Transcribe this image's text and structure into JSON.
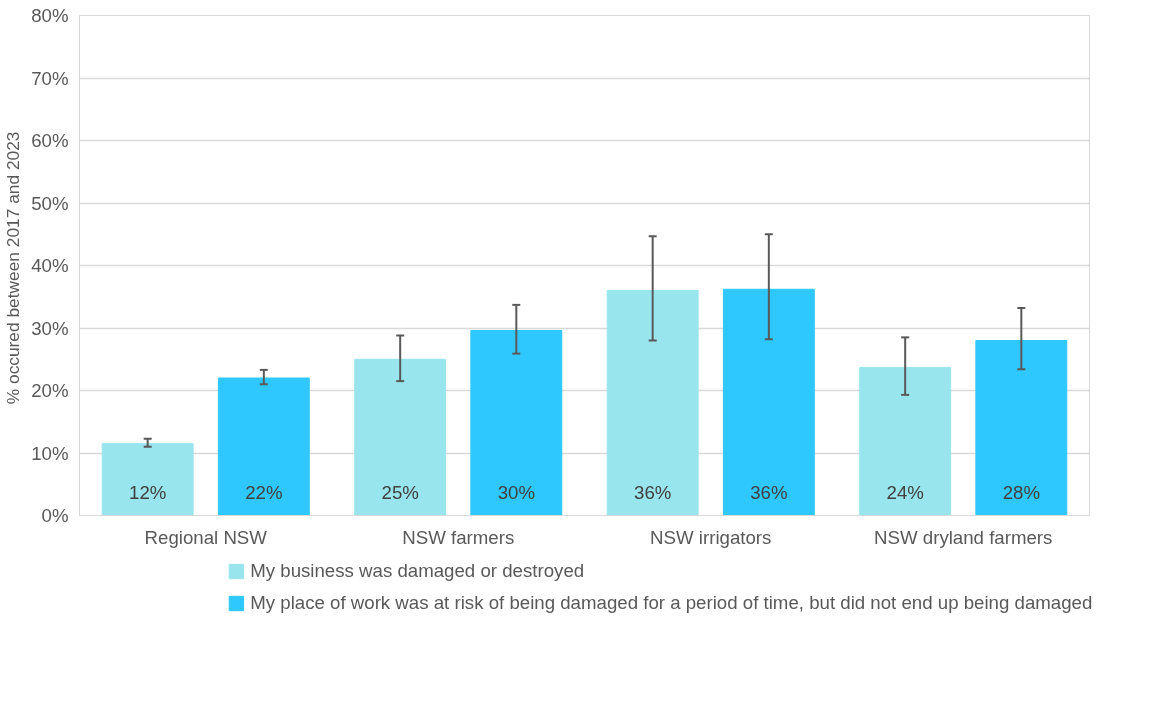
{
  "chart_data": {
    "type": "bar",
    "ylabel": "% occured between 2017 and  2023",
    "categories": [
      "Regional NSW",
      "NSW farmers",
      "NSW irrigators",
      "NSW dryland farmers"
    ],
    "series": [
      {
        "name": "My business was damaged or destroyed",
        "color": "#99e5ee",
        "values": [
          11.5,
          25,
          36,
          23.7
        ],
        "errors": [
          [
            11,
            12.3
          ],
          [
            21.5,
            28.8
          ],
          [
            28,
            44.7
          ],
          [
            19.3,
            28.5
          ]
        ],
        "value_labels": [
          "12%",
          "25%",
          "36%",
          "24%"
        ]
      },
      {
        "name": "My place of work was at risk of being damaged for a period of time, but did not end up being damaged",
        "color": "#2fc8fe",
        "values": [
          22,
          29.6,
          36.2,
          28
        ],
        "errors": [
          [
            21,
            23.3
          ],
          [
            25.9,
            33.7
          ],
          [
            28.2,
            45
          ],
          [
            23.4,
            33.2
          ]
        ],
        "value_labels": [
          "22%",
          "30%",
          "36%",
          "28%"
        ]
      }
    ],
    "ylim": [
      0,
      80
    ],
    "yticks": [
      {
        "value": 0,
        "label": "0%"
      },
      {
        "value": 10,
        "label": "10%"
      },
      {
        "value": 20,
        "label": "20%"
      },
      {
        "value": 30,
        "label": "30%"
      },
      {
        "value": 40,
        "label": "40%"
      },
      {
        "value": 50,
        "label": "50%"
      },
      {
        "value": 60,
        "label": "60%"
      },
      {
        "value": 70,
        "label": "70%"
      },
      {
        "value": 80,
        "label": "80%"
      }
    ],
    "grid": "y",
    "legend": "bottom"
  }
}
